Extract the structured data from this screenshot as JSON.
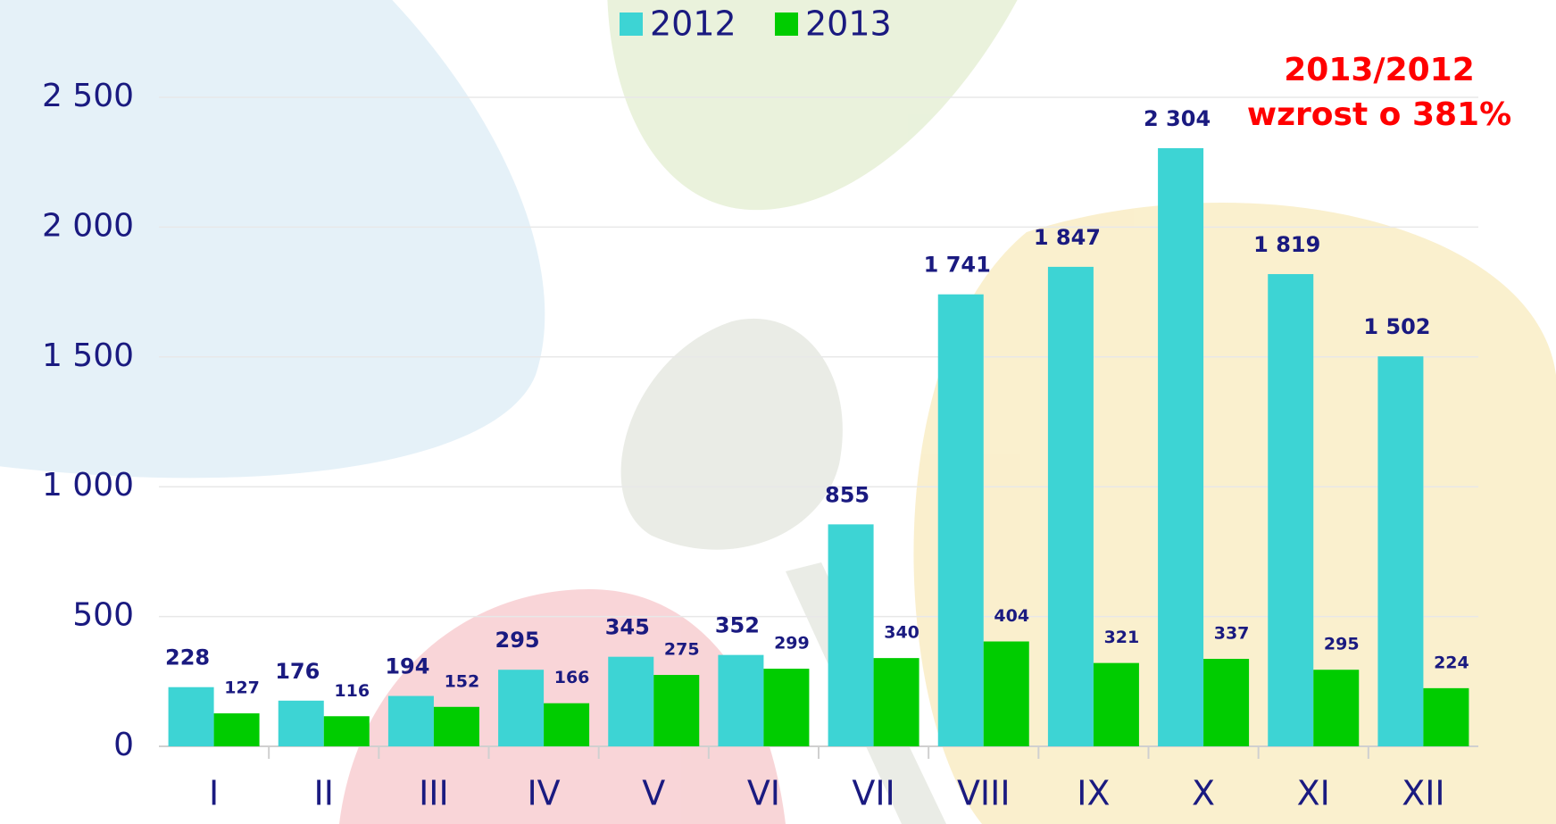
{
  "chart_data": {
    "type": "bar",
    "categories": [
      "I",
      "II",
      "III",
      "IV",
      "V",
      "VI",
      "VII",
      "VIII",
      "IX",
      "X",
      "XI",
      "XII"
    ],
    "series": [
      {
        "name": "2012",
        "color": "#3dd4d4",
        "values": [
          228,
          176,
          194,
          295,
          345,
          352,
          855,
          1741,
          1847,
          2304,
          1819,
          1502
        ],
        "value_labels": [
          "228",
          "176",
          "194",
          "295",
          "345",
          "352",
          "855",
          "1 741",
          "1 847",
          "2 304",
          "1 819",
          "1 502"
        ]
      },
      {
        "name": "2013",
        "color": "#00cc00",
        "values": [
          127,
          116,
          152,
          166,
          275,
          299,
          340,
          404,
          321,
          337,
          295,
          224
        ]
      }
    ],
    "ylim": [
      0,
      2500
    ],
    "yticks": [
      0,
      500,
      {
        "value": 1000,
        "label": "1 000"
      },
      {
        "value": 1500,
        "label": "1 500"
      },
      {
        "value": 2000,
        "label": "2 000"
      },
      {
        "value": 2500,
        "label": "2 500"
      }
    ],
    "grid": true,
    "annotations": [
      "2013/2012",
      "wzrost o 381%"
    ]
  }
}
